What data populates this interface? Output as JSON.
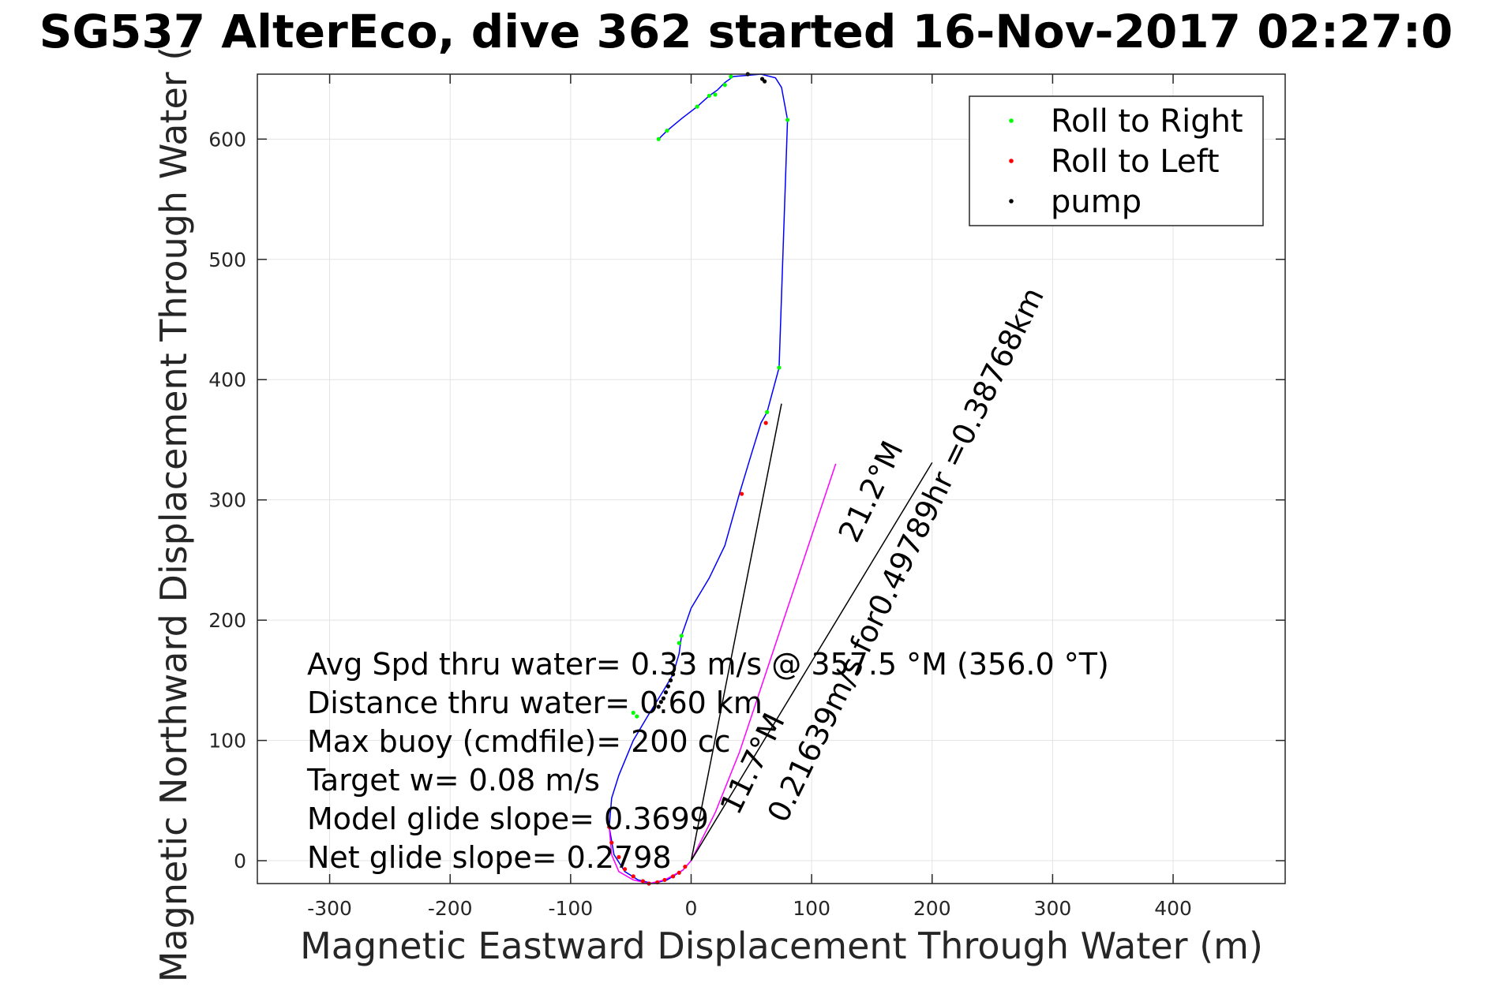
{
  "chart_data": {
    "type": "line",
    "title": "SG537 AlterEco, dive 362 started 16-Nov-2017 02:27:0",
    "xlabel": "Magnetic Eastward Displacement Through Water (m)",
    "ylabel": "Magnetic Northward Displacement Through Water (",
    "xlim": [
      -360,
      493
    ],
    "ylim": [
      -19,
      654
    ],
    "xticks": [
      -300,
      -200,
      -100,
      0,
      100,
      200,
      300,
      400
    ],
    "yticks": [
      0,
      100,
      200,
      300,
      400,
      500,
      600
    ],
    "grid": true,
    "legend_position": "top-right",
    "legend": [
      {
        "label": "Roll to Right",
        "color": "#00ff00"
      },
      {
        "label": "Roll to Left",
        "color": "#ff0000"
      },
      {
        "label": "pump",
        "color": "#000000"
      }
    ],
    "series": [
      {
        "color": "#0000ff",
        "style": "line",
        "x": [
          0,
          -7,
          -20,
          -32,
          -44,
          -55,
          -64,
          -68,
          -66,
          -60,
          -48,
          -35,
          -22,
          -15,
          -10,
          -8,
          0,
          15,
          28,
          40,
          50,
          58,
          63,
          73,
          80,
          75,
          70,
          58,
          47,
          35,
          28,
          22,
          15,
          5,
          -8,
          -20,
          -27
        ],
        "y": [
          0,
          -8,
          -16,
          -19,
          -16,
          -9,
          5,
          28,
          52,
          71,
          100,
          122,
          143,
          155,
          172,
          187,
          210,
          235,
          262,
          305,
          338,
          364,
          373,
          410,
          616,
          643,
          651,
          654,
          653,
          652,
          647,
          641,
          636,
          627,
          617,
          607,
          600
        ]
      },
      {
        "color": "#ff00ff",
        "style": "line",
        "x": [
          -68,
          -66,
          -60,
          -48,
          -35,
          -22,
          -7,
          0,
          20,
          40,
          60,
          80,
          100,
          120
        ],
        "y": [
          28,
          5,
          -9,
          -16,
          -19,
          -16,
          -8,
          0,
          40,
          90,
          150,
          210,
          270,
          330
        ]
      },
      {
        "color": "#000000",
        "style": "line",
        "x": [
          0,
          75
        ],
        "y": [
          0,
          380
        ]
      },
      {
        "color": "#000000",
        "style": "line",
        "x": [
          0,
          200
        ],
        "y": [
          0,
          331
        ]
      }
    ],
    "markers": [
      {
        "name": "Roll to Right",
        "color": "#00ff00",
        "x": [
          -27,
          -20,
          5,
          20,
          28,
          33,
          15,
          -10,
          -8,
          -45,
          -48,
          63,
          73,
          80
        ],
        "y": [
          600,
          607,
          627,
          637,
          645,
          652,
          636,
          181,
          187,
          120,
          123,
          373,
          410,
          616
        ]
      },
      {
        "name": "Roll to Left",
        "color": "#ff0000",
        "x": [
          42,
          62,
          -68,
          -66,
          -60,
          -55,
          -48,
          -40,
          -35,
          -28,
          -22,
          -15,
          -10,
          -5
        ],
        "y": [
          305,
          364,
          28,
          15,
          3,
          -7,
          -13,
          -17,
          -19,
          -18,
          -16,
          -13,
          -10,
          -5
        ]
      },
      {
        "name": "pump",
        "color": "#000000",
        "x": [
          47,
          59,
          61,
          -15,
          -17,
          -19,
          -21,
          -23,
          -25,
          -27
        ],
        "y": [
          654,
          650,
          648,
          155,
          150,
          145,
          140,
          135,
          132,
          128
        ]
      }
    ],
    "annotations": [
      "Avg Spd thru water=  0.33 m/s @ 357.5 °M (356.0 °T)",
      "Distance thru water=  0.60 km",
      "Max buoy (cmdfile)= 200 cc",
      "Target w= 0.08 m/s",
      "Model glide slope= 0.3699",
      "Net glide slope= 0.2798"
    ],
    "rotated_annotations": [
      "0.21639m/s for0.49789hr =0.38768km",
      "21.2°M",
      "11.7°M"
    ]
  }
}
